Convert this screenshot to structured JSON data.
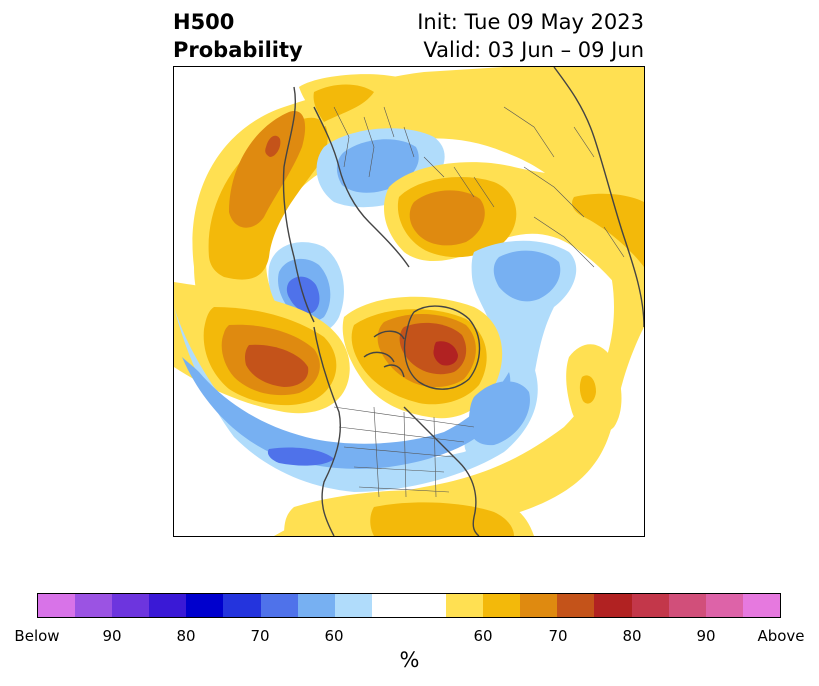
{
  "title": {
    "left_line1": "H500",
    "left_line2": "Probability",
    "right_line1": "Init: Tue 09 May 2023",
    "right_line2": "Valid: 03 Jun – 09 Jun"
  },
  "colorbar": {
    "unit": "%",
    "swatches": [
      "#d873e8",
      "#9b53e3",
      "#6d35de",
      "#3a19d6",
      "#0000cd",
      "#2434dd",
      "#4f72ea",
      "#77b0f2",
      "#b0dcfb",
      "#ffffff",
      "#ffffff",
      "#ffe052",
      "#f3b90a",
      "#df8a10",
      "#c4531a",
      "#b12222",
      "#c3374a",
      "#d14f7a",
      "#dd63a8",
      "#e679df"
    ],
    "tick_labels": [
      "Below",
      "90",
      "80",
      "70",
      "60",
      "60",
      "70",
      "80",
      "90",
      "Above"
    ]
  },
  "map": {
    "projection": "north-polar-stereographic",
    "palette": {
      "above_55": "#ffe052",
      "above_60": "#f3b90a",
      "above_65": "#df8a10",
      "above_70": "#c4531a",
      "above_75": "#b12222",
      "below_55": "#b0dcfb",
      "below_60": "#77b0f2",
      "below_65": "#4f72ea",
      "coastline": "#444444",
      "borders": "#555555"
    }
  }
}
